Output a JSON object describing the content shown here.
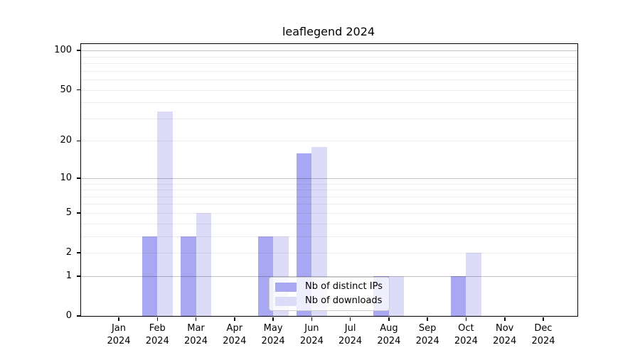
{
  "window": {
    "background": "#ffffff"
  },
  "chart_data": {
    "type": "bar",
    "title": "leaflegend 2024",
    "x_year": "2024",
    "categories": [
      "Jan",
      "Feb",
      "Mar",
      "Apr",
      "May",
      "Jun",
      "Jul",
      "Aug",
      "Sep",
      "Oct",
      "Nov",
      "Dec"
    ],
    "series": [
      {
        "name": "Nb of distinct IPs",
        "color": "#a8a8f2",
        "values": [
          0,
          3,
          3,
          0,
          3,
          16,
          0,
          1,
          0,
          1,
          0,
          0
        ]
      },
      {
        "name": "Nb of downloads",
        "color": "#dcdcf9",
        "values": [
          0,
          34,
          5,
          0,
          3,
          18,
          0,
          1,
          0,
          2,
          0,
          0
        ]
      }
    ],
    "y_ticks": [
      0,
      1,
      2,
      5,
      10,
      20,
      50,
      100
    ],
    "gridlines": {
      "minor": [
        2,
        3,
        4,
        5,
        6,
        7,
        8,
        9,
        20,
        30,
        40,
        50,
        60,
        70,
        80,
        90
      ],
      "major": [
        1,
        10,
        100
      ]
    },
    "scale": "log1p",
    "ylim": [
      0,
      112
    ],
    "grid": true,
    "legend_position": "lower center",
    "axis_color": "#000000",
    "gridline_minor_color": "rgba(0,0,0,0.07)",
    "gridline_major_color": "rgba(0,0,0,0.24)",
    "legend_border_color": "#cccccc"
  }
}
